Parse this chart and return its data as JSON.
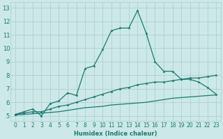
{
  "xlabel": "Humidex (Indice chaleur)",
  "bg_color": "#cce8e8",
  "grid_color": "#aacccc",
  "line_color": "#1a7a6e",
  "xlim": [
    -0.5,
    23.5
  ],
  "ylim": [
    4.6,
    13.4
  ],
  "xticks": [
    0,
    1,
    2,
    3,
    4,
    5,
    6,
    7,
    8,
    9,
    10,
    11,
    12,
    13,
    14,
    15,
    16,
    17,
    18,
    19,
    20,
    21,
    22,
    23
  ],
  "yticks": [
    5,
    6,
    7,
    8,
    9,
    10,
    11,
    12,
    13
  ],
  "series1_x": [
    0,
    1,
    2,
    3,
    4,
    5,
    6,
    7,
    8,
    9,
    10,
    11,
    12,
    13,
    14,
    15,
    16,
    17,
    18,
    19,
    20,
    21,
    22,
    23
  ],
  "series1_y": [
    5.1,
    5.3,
    5.5,
    5.0,
    5.9,
    6.1,
    6.7,
    6.5,
    8.5,
    8.7,
    9.9,
    11.3,
    11.5,
    11.5,
    12.8,
    11.1,
    9.0,
    8.3,
    8.3,
    7.7,
    7.7,
    7.5,
    7.1,
    6.6
  ],
  "series2_x": [
    0,
    1,
    2,
    3,
    4,
    5,
    6,
    7,
    8,
    9,
    10,
    11,
    12,
    13,
    14,
    15,
    16,
    17,
    18,
    19,
    20,
    21,
    22,
    23
  ],
  "series2_y": [
    5.1,
    5.2,
    5.3,
    5.3,
    5.5,
    5.7,
    5.8,
    6.0,
    6.2,
    6.4,
    6.6,
    6.8,
    7.0,
    7.1,
    7.3,
    7.4,
    7.5,
    7.5,
    7.6,
    7.7,
    7.8,
    7.8,
    7.9,
    8.0
  ],
  "series3_x": [
    0,
    1,
    2,
    3,
    4,
    5,
    6,
    7,
    8,
    9,
    10,
    11,
    12,
    13,
    14,
    15,
    16,
    17,
    18,
    19,
    20,
    21,
    22,
    23
  ],
  "series3_y": [
    5.05,
    5.1,
    5.15,
    5.2,
    5.25,
    5.3,
    5.4,
    5.5,
    5.6,
    5.65,
    5.7,
    5.8,
    5.85,
    5.9,
    5.95,
    6.0,
    6.1,
    6.2,
    6.3,
    6.35,
    6.4,
    6.45,
    6.5,
    6.55
  ]
}
